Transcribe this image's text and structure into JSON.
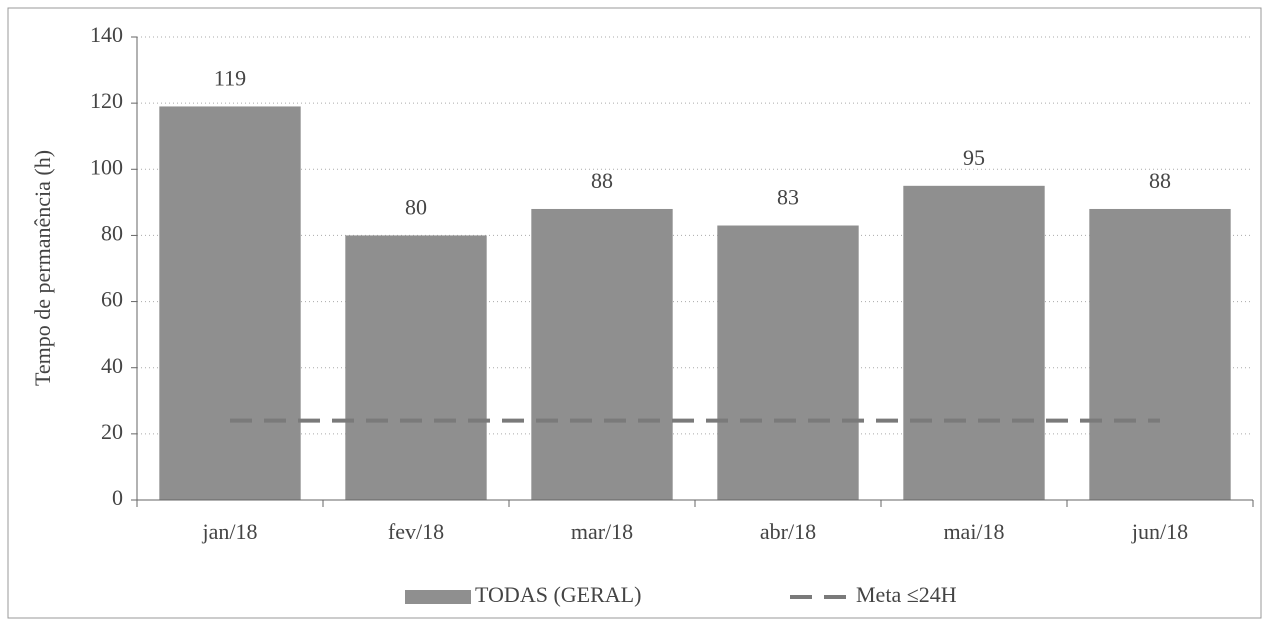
{
  "chart_data": {
    "type": "bar",
    "y_label": "Tempo de permanência (h)",
    "categories": [
      "jan/18",
      "fev/18",
      "mar/18",
      "abr/18",
      "mai/18",
      "jun/18"
    ],
    "series": [
      {
        "name": "TODAS (GERAL)",
        "type": "bar",
        "color": "#8f8f8f",
        "values": [
          119,
          80,
          88,
          83,
          95,
          88
        ]
      },
      {
        "name": "Meta ≤24H",
        "type": "line",
        "dashed": true,
        "color": "#7a7a7a",
        "values": [
          24,
          24,
          24,
          24,
          24,
          24
        ]
      }
    ],
    "ylim": [
      0,
      140
    ],
    "yticks": [
      0,
      20,
      40,
      60,
      80,
      100,
      120,
      140
    ],
    "grid": true,
    "legend": "bottom"
  }
}
